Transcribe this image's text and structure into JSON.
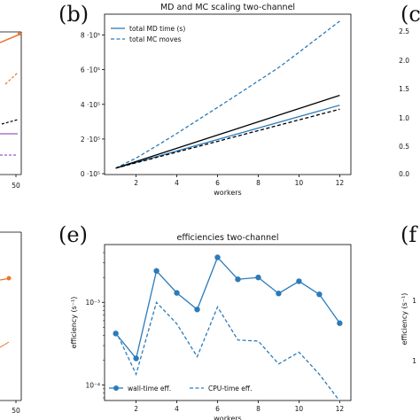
{
  "panels": {
    "b": "(b)",
    "c": "(c",
    "e": "(e)",
    "f": "(f"
  },
  "colors": {
    "blue": "#2b7bba",
    "black": "#000000",
    "orange": "#e8762c",
    "purple": "#9a5cc4"
  },
  "left_fragments": {
    "top_tick": "50",
    "bottom_tick": "50"
  },
  "right_fragments": {
    "top_ticks": [
      "2.5",
      "2.0",
      "1.5",
      "1.0",
      "0.5",
      "0.0"
    ],
    "bottom_ylabel": "efficiency (s⁻¹)",
    "bottom_ticks": [
      "1",
      "1"
    ]
  },
  "chart_data": [
    {
      "type": "line",
      "title": "MD and MC scaling two-channel",
      "xlabel": "workers",
      "ylabel": "",
      "x": [
        1,
        12
      ],
      "xticks": [
        2,
        4,
        6,
        8,
        10,
        12
      ],
      "xlim": [
        0.45,
        12.55
      ],
      "ylim": [
        -5000,
        920000
      ],
      "ytick_values": [
        0,
        200000,
        400000,
        600000,
        800000
      ],
      "ytick_labels": [
        "0 ·10⁵",
        "2 ·10⁵",
        "4 ·10⁵",
        "6 ·10⁵",
        "8 ·10⁵"
      ],
      "grid": false,
      "legend_position": "top-left",
      "series": [
        {
          "name": "total MD time (s)",
          "style": "solid",
          "color": "#2b7bba",
          "x": [
            1,
            12
          ],
          "y": [
            32000,
            395000
          ]
        },
        {
          "name": "total MC moves",
          "style": "dashed",
          "color": "#2b7bba",
          "x": [
            1,
            2,
            3,
            4,
            5,
            6,
            7,
            8,
            9,
            10,
            11,
            12
          ],
          "y": [
            32000,
            90000,
            160000,
            232000,
            307000,
            382000,
            458000,
            535000,
            612000,
            700000,
            790000,
            880000
          ]
        },
        {
          "name": "",
          "style": "solid",
          "color": "#000000",
          "x": [
            1,
            12
          ],
          "y": [
            32000,
            452000
          ]
        },
        {
          "name": "",
          "style": "dashed",
          "color": "#000000",
          "x": [
            1,
            12
          ],
          "y": [
            32000,
            372000
          ]
        }
      ]
    },
    {
      "type": "line",
      "title": "efficiencies two-channel",
      "xlabel": "workers",
      "ylabel": "efficiency (s⁻¹)",
      "log_y": true,
      "xticks": [
        2,
        4,
        6,
        8,
        10,
        12
      ],
      "xlim": [
        0.45,
        12.55
      ],
      "ylim": [
        6.5e-05,
        0.005
      ],
      "ytick_values": [
        0.0001,
        0.001
      ],
      "ytick_labels": [
        "10⁻⁴",
        "10⁻³"
      ],
      "grid": false,
      "legend_position": "bottom",
      "series": [
        {
          "name": "wall-time eff.",
          "style": "solid-marker",
          "color": "#2b7bba",
          "x": [
            1,
            2,
            3,
            4,
            5,
            6,
            7,
            8,
            9,
            10,
            11,
            12
          ],
          "y": [
            0.00042,
            0.00021,
            0.0024,
            0.0013,
            0.00082,
            0.0035,
            0.0019,
            0.002,
            0.00128,
            0.0018,
            0.00125,
            0.00056
          ]
        },
        {
          "name": "CPU-time eff.",
          "style": "dashed",
          "color": "#2b7bba",
          "x": [
            1,
            2,
            3,
            4,
            5,
            6,
            7,
            8,
            9,
            10,
            11,
            12
          ],
          "y": [
            0.00045,
            0.000135,
            0.001,
            0.00055,
            0.00022,
            0.00088,
            0.00035,
            0.00034,
            0.00018,
            0.00025,
            0.000135,
            6.4e-05
          ]
        }
      ]
    }
  ]
}
